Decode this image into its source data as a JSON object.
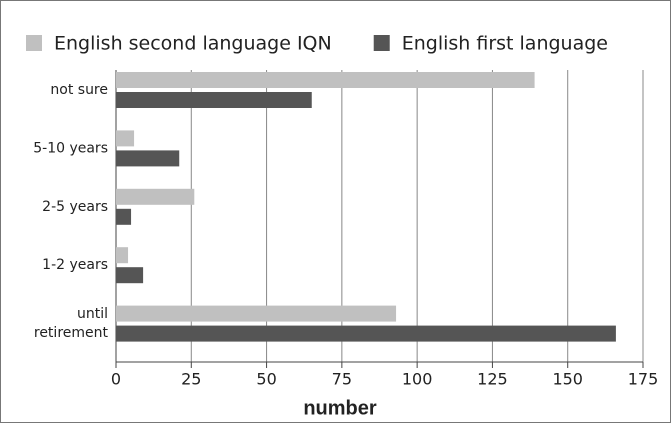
{
  "chart_data": {
    "type": "barh",
    "categories": [
      "not sure",
      "5-10 years",
      "2-5 years",
      "1-2 years",
      "until retirement"
    ],
    "series": [
      {
        "name": "English second language IQN",
        "color": "#c0c0c0",
        "values": [
          139,
          6,
          26,
          4,
          93
        ]
      },
      {
        "name": "English first language",
        "color": "#555555",
        "values": [
          65,
          21,
          5,
          9,
          166
        ]
      }
    ],
    "xlabel": "number",
    "xlim": [
      0,
      175
    ],
    "xticks": [
      0,
      25,
      50,
      75,
      100,
      125,
      150,
      175
    ],
    "grid": true,
    "legend": "top"
  }
}
